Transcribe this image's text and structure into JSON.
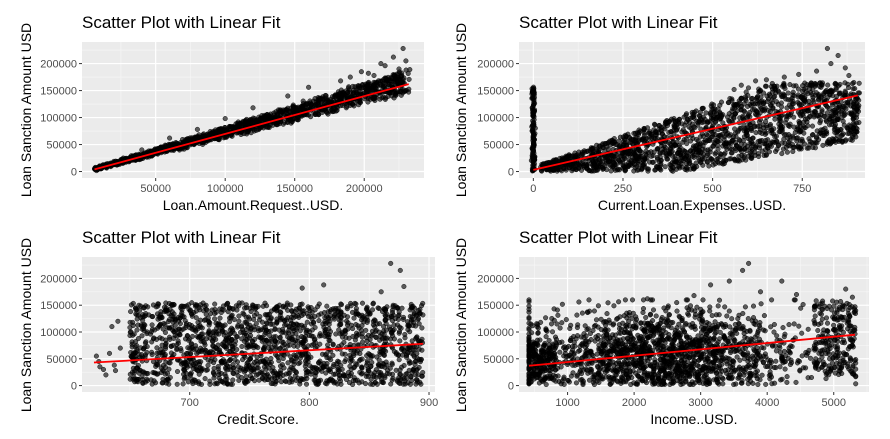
{
  "chart_data": [
    {
      "type": "scatter",
      "title": "Scatter Plot with Linear Fit",
      "xlabel": "Loan.Amount.Request..USD.",
      "ylabel": "Loan Sanction Amount USD",
      "xlim": [
        -3000,
        243000
      ],
      "ylim": [
        -12000,
        240000
      ],
      "x_ticks": [
        50000,
        100000,
        150000,
        200000
      ],
      "x_tick_labels": [
        "50000",
        "100000",
        "150000",
        "200000"
      ],
      "y_ticks": [
        0,
        50000,
        100000,
        150000,
        200000
      ],
      "y_tick_labels": [
        "0",
        "50000",
        "100000",
        "150000",
        "200000"
      ],
      "grid": true,
      "fit_line": {
        "color": "#ff0000",
        "from": [
          6000,
          4000
        ],
        "to": [
          232000,
          162000
        ]
      },
      "point_color": "#000000",
      "scatter_pattern": {
        "kind": "fan",
        "x_range": [
          6000,
          233000
        ],
        "slope_low": 0.62,
        "slope_high": 0.82,
        "n": 1400
      },
      "outliers": [
        [
          190000,
          175000
        ],
        [
          203000,
          182000
        ],
        [
          215000,
          196000
        ],
        [
          221000,
          212000
        ],
        [
          228000,
          228000
        ],
        [
          230000,
          205000
        ],
        [
          198000,
          185000
        ],
        [
          183000,
          168000
        ],
        [
          160000,
          156000
        ],
        [
          145000,
          140000
        ],
        [
          120000,
          118000
        ],
        [
          100000,
          98000
        ],
        [
          80000,
          78000
        ],
        [
          60000,
          62000
        ],
        [
          40000,
          40000
        ],
        [
          225000,
          190000
        ],
        [
          212000,
          200000
        ],
        [
          207000,
          178000
        ]
      ]
    },
    {
      "type": "scatter",
      "title": "Scatter Plot with Linear Fit",
      "xlabel": "Current.Loan.Expenses..USD.",
      "ylabel": "Loan Sanction Amount USD",
      "xlim": [
        -40,
        925
      ],
      "ylim": [
        -12000,
        240000
      ],
      "x_ticks": [
        0,
        250,
        500,
        750
      ],
      "x_tick_labels": [
        "0",
        "250",
        "500",
        "750"
      ],
      "y_ticks": [
        0,
        50000,
        100000,
        150000,
        200000
      ],
      "y_tick_labels": [
        "0",
        "50000",
        "100000",
        "150000",
        "200000"
      ],
      "grid": true,
      "fit_line": {
        "color": "#ff0000",
        "from": [
          0,
          3000
        ],
        "to": [
          905,
          141000
        ]
      },
      "point_color": "#000000",
      "scatter_pattern": {
        "kind": "cone",
        "x_range": [
          20,
          910
        ],
        "vertical_strip_x": 0,
        "vertical_strip_y": [
          0,
          158000
        ],
        "n": 1700
      },
      "outliers": [
        [
          820,
          228000
        ],
        [
          850,
          215000
        ],
        [
          870,
          192000
        ],
        [
          620,
          168000
        ],
        [
          580,
          160000
        ],
        [
          700,
          175000
        ],
        [
          880,
          178000
        ],
        [
          790,
          186000
        ],
        [
          650,
          170000
        ],
        [
          740,
          180000
        ],
        [
          830,
          200000
        ],
        [
          560,
          152000
        ],
        [
          600,
          155000
        ]
      ]
    },
    {
      "type": "scatter",
      "title": "Scatter Plot with Linear Fit",
      "xlabel": "Credit.Score.",
      "ylabel": "Loan Sanction Amount USD",
      "xlim": [
        610,
        905
      ],
      "ylim": [
        -12000,
        240000
      ],
      "x_ticks": [
        700,
        800,
        900
      ],
      "x_tick_labels": [
        "700",
        "800",
        "900"
      ],
      "y_ticks": [
        0,
        50000,
        100000,
        150000,
        200000
      ],
      "y_tick_labels": [
        "0",
        "50000",
        "100000",
        "150000",
        "200000"
      ],
      "grid": true,
      "fit_line": {
        "color": "#ff0000",
        "from": [
          620,
          43000
        ],
        "to": [
          895,
          78000
        ]
      },
      "point_color": "#000000",
      "scatter_pattern": {
        "kind": "band",
        "x_range": [
          650,
          895
        ],
        "y_range": [
          2000,
          155000
        ],
        "n": 1700
      },
      "outliers": [
        [
          622,
          55000
        ],
        [
          624,
          45000
        ],
        [
          628,
          30000
        ],
        [
          630,
          20000
        ],
        [
          633,
          60000
        ],
        [
          635,
          110000
        ],
        [
          637,
          38000
        ],
        [
          640,
          120000
        ],
        [
          625,
          35000
        ],
        [
          642,
          70000
        ],
        [
          638,
          28000
        ],
        [
          876,
          215000
        ],
        [
          868,
          228000
        ],
        [
          879,
          185000
        ],
        [
          812,
          188000
        ],
        [
          860,
          175000
        ],
        [
          794,
          182000
        ]
      ]
    },
    {
      "type": "scatter",
      "title": "Scatter Plot with Linear Fit",
      "xlabel": "Income..USD.",
      "ylabel": "Loan Sanction Amount USD",
      "xlim": [
        270,
        5530
      ],
      "ylim": [
        -12000,
        240000
      ],
      "x_ticks": [
        1000,
        2000,
        3000,
        4000,
        5000
      ],
      "x_tick_labels": [
        "1000",
        "2000",
        "3000",
        "4000",
        "5000"
      ],
      "y_ticks": [
        0,
        50000,
        100000,
        150000,
        200000
      ],
      "y_tick_labels": [
        "0",
        "50000",
        "100000",
        "150000",
        "200000"
      ],
      "grid": true,
      "fit_line": {
        "color": "#ff0000",
        "from": [
          420,
          37000
        ],
        "to": [
          5320,
          95000
        ]
      },
      "point_color": "#000000",
      "scatter_pattern": {
        "kind": "blob",
        "x_range": [
          420,
          5330
        ],
        "y_range": [
          2000,
          160000
        ],
        "n": 1700
      },
      "outliers": [
        [
          3720,
          228000
        ],
        [
          3630,
          215000
        ],
        [
          3430,
          195000
        ],
        [
          3150,
          188000
        ],
        [
          4220,
          195000
        ],
        [
          5180,
          180000
        ],
        [
          4440,
          170000
        ],
        [
          5280,
          165000
        ],
        [
          5140,
          150000
        ],
        [
          3900,
          175000
        ],
        [
          2900,
          168000
        ],
        [
          2200,
          162000
        ]
      ]
    }
  ]
}
